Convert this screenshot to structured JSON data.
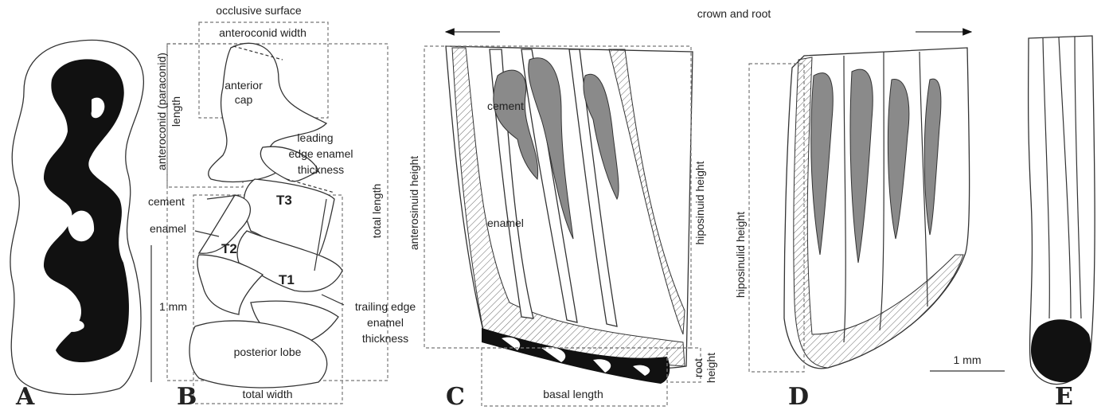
{
  "letters": [
    "A",
    "B",
    "C",
    "D",
    "E"
  ],
  "panel_b": {
    "occlusive_surface": "occlusive surface",
    "anteroconid_width": "anteroconid width",
    "anteroconid_length": [
      "anteroconid (paraconid)",
      "length"
    ],
    "anterior_cap": [
      "anterior",
      "cap"
    ],
    "leading_edge": [
      "leading",
      "edge enamel",
      "thickness"
    ],
    "cement": "cement",
    "enamel": "enamel",
    "t3": "T3",
    "t2": "T2",
    "t1": "T1",
    "scale": "1 mm",
    "total_length": "total length",
    "trailing_edge": [
      "trailing edge",
      "enamel",
      "thickness"
    ],
    "posterior_lobe": "posterior lobe",
    "total_width": "total width"
  },
  "panel_c": {
    "title": "crown and root",
    "cement": "cement",
    "enamel": "enamel",
    "anterosinuid_height": "anterosinuid height",
    "hiposinuid_height": "hiposinuid height",
    "basal_length": "basal length",
    "root_height": [
      "root",
      "height"
    ]
  },
  "panel_d": {
    "hiposinulid_height": "hiposinulid height",
    "scale": "1 mm"
  }
}
